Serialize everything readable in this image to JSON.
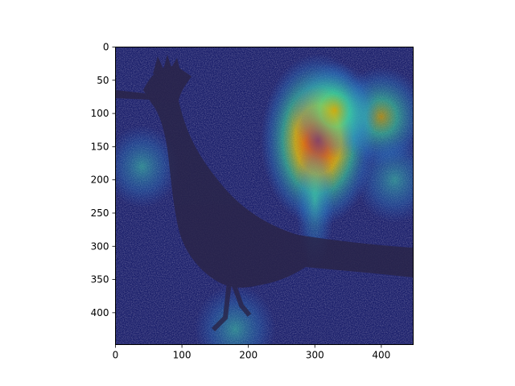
{
  "chart_data": {
    "type": "heatmap",
    "description_free": true,
    "title": "",
    "xlabel": "",
    "ylabel": "",
    "xlim": [
      0,
      448
    ],
    "ylim": [
      448,
      0
    ],
    "x_ticks": [
      0,
      100,
      200,
      300,
      400
    ],
    "y_ticks": [
      0,
      50,
      100,
      150,
      200,
      250,
      300,
      350,
      400
    ],
    "colormap": "jet",
    "hotspots": [
      {
        "x": 305,
        "y": 140,
        "intensity": 1.0
      },
      {
        "x": 400,
        "y": 105,
        "intensity": 0.6
      },
      {
        "x": 330,
        "y": 95,
        "intensity": 0.55
      },
      {
        "x": 40,
        "y": 180,
        "intensity": 0.35
      },
      {
        "x": 420,
        "y": 200,
        "intensity": 0.4
      },
      {
        "x": 180,
        "y": 425,
        "intensity": 0.45
      }
    ],
    "colors": {
      "background": "#1a1f6b",
      "hot": "#d7301f",
      "warm": "#ffd400",
      "mid": "#3fe6a0",
      "cool": "#2b6bd6",
      "bird": "#2a2447"
    }
  }
}
